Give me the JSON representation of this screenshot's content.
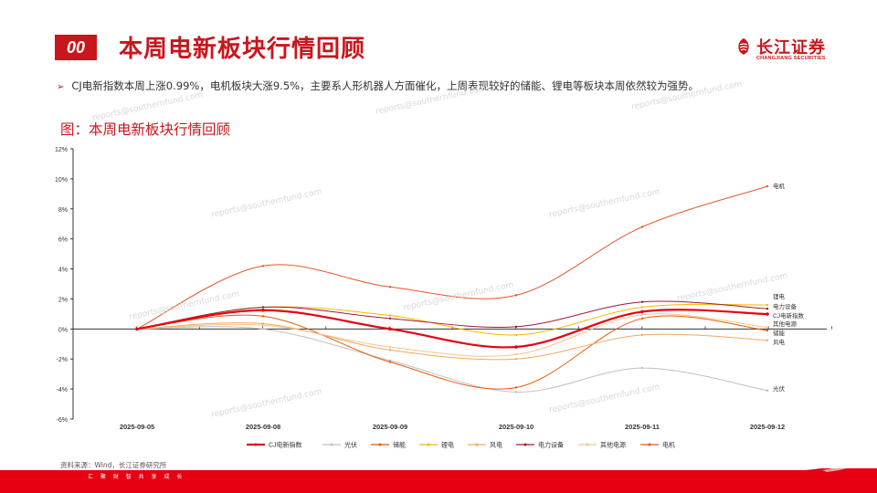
{
  "header": {
    "badge": "00",
    "title": "本周电新板块行情回顾",
    "logo_name": "长江证券",
    "logo_en": "CHANGJIANG SECURITIES"
  },
  "bullet_text": "CJ电新指数本周上涨0.99%，电机板块大涨9.5%，主要系人形机器人方面催化，上周表现较好的储能、锂电等板块本周依然较为强势。",
  "figure_title": "图：本周电新板块行情回顾",
  "source": "资料来源：Wind，长江证券研究所",
  "footer_slogan": "汇 聚 财 智   共 享 成 长",
  "watermark": "reports@southernfund.com",
  "colors": {
    "brand": "#c8161d"
  },
  "chart_data": {
    "type": "line",
    "x": [
      "2025-09-05",
      "2025-09-08",
      "2025-09-09",
      "2025-09-10",
      "2025-09-11",
      "2025-09-12"
    ],
    "ylim": [
      -6,
      12
    ],
    "yticks": [
      12,
      10,
      8,
      6,
      4,
      2,
      0,
      -2,
      -4,
      -6
    ],
    "ytick_labels": [
      "12%",
      "10%",
      "8%",
      "6%",
      "4%",
      "2%",
      "0%",
      "-2%",
      "-4%",
      "-6%"
    ],
    "legend_position": "bottom",
    "series": [
      {
        "name": "CJ电新指数",
        "color": "#e60012",
        "width": 2.2,
        "values": [
          0,
          1.25,
          0,
          -1.2,
          1.15,
          0.99
        ],
        "end_label": "CJ电新指数"
      },
      {
        "name": "光伏",
        "color": "#bfbfbf",
        "width": 1,
        "values": [
          0,
          0,
          -2.1,
          -4.2,
          -2.6,
          -4.1
        ],
        "end_label": "光伏"
      },
      {
        "name": "储能",
        "color": "#e8590c",
        "width": 1,
        "values": [
          0,
          0.85,
          -2.2,
          -3.9,
          0.7,
          -0.1
        ],
        "end_label": "储能"
      },
      {
        "name": "锂电",
        "color": "#f5b800",
        "width": 1,
        "values": [
          0,
          1.45,
          0.9,
          -0.4,
          1.45,
          1.6
        ],
        "end_label": "锂电"
      },
      {
        "name": "风电",
        "color": "#f2a860",
        "width": 1,
        "values": [
          0,
          0.35,
          -1.4,
          -2.0,
          -0.4,
          -0.75
        ],
        "end_label": "风电"
      },
      {
        "name": "电力设备",
        "color": "#9e1b32",
        "width": 1,
        "values": [
          0,
          1.45,
          0.7,
          0.15,
          1.8,
          1.35
        ],
        "end_label": "电力设备"
      },
      {
        "name": "其他电源",
        "color": "#f4c68a",
        "width": 1,
        "values": [
          0,
          0.25,
          -1.2,
          -1.7,
          0.95,
          0.1
        ],
        "end_label": "其他电源"
      },
      {
        "name": "电机",
        "color": "#e8552b",
        "width": 1,
        "values": [
          0,
          4.2,
          2.8,
          2.25,
          6.8,
          9.5
        ],
        "end_label": "电机"
      }
    ]
  }
}
